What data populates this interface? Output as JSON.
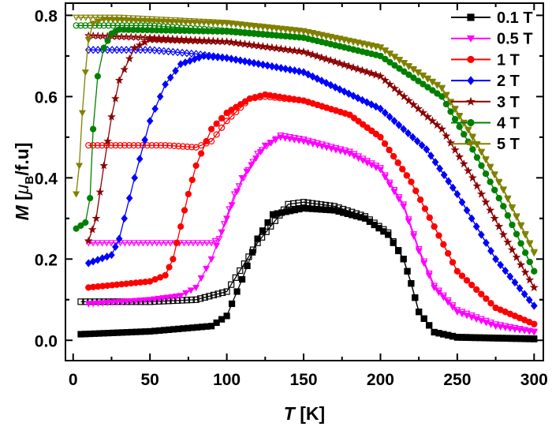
{
  "chart_data": {
    "type": "line",
    "xlabel": {
      "symbol": "T",
      "unit": "[K]"
    },
    "ylabel": {
      "symbol": "M",
      "unit_pre": "[",
      "mu": "μ",
      "sub": "B",
      "unit_post": "/f.u]"
    },
    "xlim": [
      -5,
      306
    ],
    "ylim": [
      -0.05,
      0.83
    ],
    "xticks": [
      0,
      50,
      100,
      150,
      200,
      250,
      300
    ],
    "xtick_labels": [
      "0",
      "50",
      "100",
      "150",
      "200",
      "250",
      "300"
    ],
    "yticks": [
      0.0,
      0.2,
      0.4,
      0.6,
      0.8
    ],
    "ytick_labels": [
      "0.0",
      "0.2",
      "0.4",
      "0.6",
      "0.8"
    ],
    "grid": false,
    "legend_position": "top-right",
    "series": [
      {
        "name": "0.1 T",
        "color": "#000000",
        "marker": "square",
        "filled": [
          [
            5,
            0.015
          ],
          [
            50,
            0.022
          ],
          [
            90,
            0.035
          ],
          [
            100,
            0.06
          ],
          [
            110,
            0.15
          ],
          [
            120,
            0.25
          ],
          [
            130,
            0.31
          ],
          [
            150,
            0.325
          ],
          [
            170,
            0.32
          ],
          [
            190,
            0.3
          ],
          [
            205,
            0.26
          ],
          [
            215,
            0.2
          ],
          [
            220,
            0.14
          ],
          [
            225,
            0.07
          ],
          [
            235,
            0.02
          ],
          [
            250,
            0.007
          ],
          [
            300,
            0.003
          ]
        ],
        "open": [
          [
            5,
            0.095
          ],
          [
            50,
            0.095
          ],
          [
            80,
            0.1
          ],
          [
            100,
            0.12
          ],
          [
            120,
            0.24
          ],
          [
            140,
            0.335
          ],
          [
            150,
            0.34
          ],
          [
            170,
            0.33
          ],
          [
            190,
            0.305
          ],
          [
            205,
            0.265
          ],
          [
            215,
            0.2
          ],
          [
            220,
            0.14
          ],
          [
            225,
            0.07
          ],
          [
            235,
            0.02
          ],
          [
            250,
            0.008
          ],
          [
            300,
            0.004
          ]
        ]
      },
      {
        "name": "0.5 T",
        "color": "#ff00ff",
        "marker": "triangle-down",
        "filled": [
          [
            10,
            0.09
          ],
          [
            50,
            0.1
          ],
          [
            70,
            0.11
          ],
          [
            80,
            0.13
          ],
          [
            90,
            0.2
          ],
          [
            100,
            0.3
          ],
          [
            110,
            0.4
          ],
          [
            125,
            0.48
          ],
          [
            135,
            0.5
          ],
          [
            150,
            0.49
          ],
          [
            180,
            0.46
          ],
          [
            200,
            0.42
          ],
          [
            215,
            0.33
          ],
          [
            225,
            0.22
          ],
          [
            235,
            0.13
          ],
          [
            250,
            0.07
          ],
          [
            275,
            0.035
          ],
          [
            300,
            0.02
          ]
        ],
        "open": [
          [
            10,
            0.24
          ],
          [
            90,
            0.24
          ],
          [
            95,
            0.25
          ],
          [
            105,
            0.36
          ],
          [
            120,
            0.46
          ],
          [
            135,
            0.505
          ],
          [
            150,
            0.495
          ],
          [
            180,
            0.465
          ],
          [
            200,
            0.425
          ],
          [
            215,
            0.335
          ],
          [
            225,
            0.225
          ],
          [
            235,
            0.135
          ],
          [
            250,
            0.075
          ],
          [
            275,
            0.04
          ],
          [
            300,
            0.022
          ]
        ]
      },
      {
        "name": "1 T",
        "color": "#ff0000",
        "marker": "circle",
        "filled": [
          [
            10,
            0.13
          ],
          [
            50,
            0.145
          ],
          [
            60,
            0.16
          ],
          [
            65,
            0.2
          ],
          [
            70,
            0.28
          ],
          [
            75,
            0.36
          ],
          [
            80,
            0.43
          ],
          [
            90,
            0.52
          ],
          [
            100,
            0.56
          ],
          [
            115,
            0.595
          ],
          [
            125,
            0.605
          ],
          [
            150,
            0.59
          ],
          [
            180,
            0.555
          ],
          [
            200,
            0.5
          ],
          [
            220,
            0.39
          ],
          [
            235,
            0.28
          ],
          [
            250,
            0.17
          ],
          [
            275,
            0.08
          ],
          [
            300,
            0.04
          ]
        ],
        "open": [
          [
            10,
            0.48
          ],
          [
            60,
            0.48
          ],
          [
            80,
            0.475
          ],
          [
            90,
            0.49
          ],
          [
            100,
            0.54
          ],
          [
            115,
            0.595
          ],
          [
            125,
            0.6
          ],
          [
            150,
            0.59
          ],
          [
            180,
            0.555
          ],
          [
            200,
            0.5
          ],
          [
            220,
            0.39
          ],
          [
            235,
            0.28
          ],
          [
            250,
            0.17
          ],
          [
            275,
            0.08
          ],
          [
            300,
            0.04
          ]
        ]
      },
      {
        "name": "2 T",
        "color": "#0000ff",
        "marker": "diamond",
        "filled": [
          [
            10,
            0.19
          ],
          [
            25,
            0.21
          ],
          [
            30,
            0.25
          ],
          [
            40,
            0.4
          ],
          [
            50,
            0.54
          ],
          [
            60,
            0.63
          ],
          [
            70,
            0.68
          ],
          [
            85,
            0.7
          ],
          [
            100,
            0.695
          ],
          [
            150,
            0.66
          ],
          [
            200,
            0.57
          ],
          [
            230,
            0.47
          ],
          [
            250,
            0.36
          ],
          [
            275,
            0.2
          ],
          [
            300,
            0.085
          ]
        ],
        "open": [
          [
            10,
            0.715
          ],
          [
            50,
            0.715
          ],
          [
            80,
            0.705
          ],
          [
            100,
            0.695
          ],
          [
            150,
            0.66
          ],
          [
            200,
            0.57
          ],
          [
            230,
            0.47
          ],
          [
            250,
            0.36
          ],
          [
            275,
            0.2
          ],
          [
            300,
            0.085
          ]
        ]
      },
      {
        "name": "3 T",
        "color": "#8b0000",
        "marker": "star",
        "filled": [
          [
            10,
            0.245
          ],
          [
            15,
            0.3
          ],
          [
            20,
            0.43
          ],
          [
            25,
            0.55
          ],
          [
            30,
            0.64
          ],
          [
            40,
            0.72
          ],
          [
            50,
            0.74
          ],
          [
            100,
            0.735
          ],
          [
            150,
            0.71
          ],
          [
            200,
            0.65
          ],
          [
            240,
            0.52
          ],
          [
            260,
            0.4
          ],
          [
            280,
            0.26
          ],
          [
            300,
            0.13
          ]
        ],
        "open": [
          [
            10,
            0.75
          ],
          [
            50,
            0.745
          ],
          [
            100,
            0.735
          ],
          [
            150,
            0.71
          ],
          [
            200,
            0.65
          ],
          [
            240,
            0.52
          ],
          [
            260,
            0.4
          ],
          [
            280,
            0.26
          ],
          [
            300,
            0.13
          ]
        ]
      },
      {
        "name": "4 T",
        "color": "#008000",
        "marker": "circle",
        "filled": [
          [
            2,
            0.275
          ],
          [
            8,
            0.29
          ],
          [
            11,
            0.35
          ],
          [
            13,
            0.52
          ],
          [
            16,
            0.65
          ],
          [
            20,
            0.72
          ],
          [
            25,
            0.755
          ],
          [
            30,
            0.765
          ],
          [
            100,
            0.76
          ],
          [
            150,
            0.745
          ],
          [
            200,
            0.7
          ],
          [
            240,
            0.6
          ],
          [
            260,
            0.47
          ],
          [
            280,
            0.33
          ],
          [
            300,
            0.17
          ]
        ],
        "open": [
          [
            2,
            0.775
          ],
          [
            50,
            0.775
          ],
          [
            100,
            0.762
          ],
          [
            150,
            0.745
          ],
          [
            200,
            0.7
          ],
          [
            240,
            0.6
          ],
          [
            260,
            0.47
          ],
          [
            280,
            0.33
          ],
          [
            300,
            0.17
          ]
        ]
      },
      {
        "name": "5 T",
        "color": "#808000",
        "marker": "triangle-down",
        "filled": [
          [
            2,
            0.36
          ],
          [
            4,
            0.43
          ],
          [
            6,
            0.56
          ],
          [
            8,
            0.66
          ],
          [
            10,
            0.74
          ],
          [
            13,
            0.78
          ],
          [
            20,
            0.79
          ],
          [
            100,
            0.78
          ],
          [
            150,
            0.76
          ],
          [
            200,
            0.72
          ],
          [
            240,
            0.62
          ],
          [
            260,
            0.5
          ],
          [
            280,
            0.37
          ],
          [
            300,
            0.215
          ]
        ],
        "open": [
          [
            2,
            0.795
          ],
          [
            30,
            0.795
          ],
          [
            100,
            0.782
          ],
          [
            150,
            0.762
          ],
          [
            200,
            0.722
          ],
          [
            240,
            0.622
          ],
          [
            260,
            0.502
          ],
          [
            280,
            0.372
          ],
          [
            300,
            0.218
          ]
        ]
      }
    ]
  }
}
